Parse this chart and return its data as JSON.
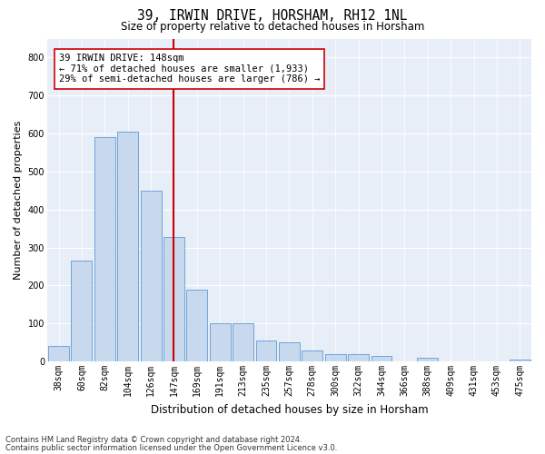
{
  "title1": "39, IRWIN DRIVE, HORSHAM, RH12 1NL",
  "title2": "Size of property relative to detached houses in Horsham",
  "xlabel": "Distribution of detached houses by size in Horsham",
  "ylabel": "Number of detached properties",
  "categories": [
    "38sqm",
    "60sqm",
    "82sqm",
    "104sqm",
    "126sqm",
    "147sqm",
    "169sqm",
    "191sqm",
    "213sqm",
    "235sqm",
    "257sqm",
    "278sqm",
    "300sqm",
    "322sqm",
    "344sqm",
    "366sqm",
    "388sqm",
    "409sqm",
    "431sqm",
    "453sqm",
    "475sqm"
  ],
  "values": [
    40,
    265,
    590,
    605,
    450,
    327,
    190,
    100,
    100,
    55,
    50,
    30,
    20,
    20,
    15,
    0,
    10,
    0,
    0,
    0,
    5
  ],
  "highlight_index": 5,
  "bar_color": "#c9d9ed",
  "bar_edge_color": "#5b9bd5",
  "highlight_line_color": "#cc0000",
  "annotation_text": "39 IRWIN DRIVE: 148sqm\n← 71% of detached houses are smaller (1,933)\n29% of semi-detached houses are larger (786) →",
  "annotation_box_color": "#ffffff",
  "annotation_box_edge": "#cc0000",
  "footer1": "Contains HM Land Registry data © Crown copyright and database right 2024.",
  "footer2": "Contains public sector information licensed under the Open Government Licence v3.0.",
  "ylim": [
    0,
    850
  ],
  "yticks": [
    0,
    100,
    200,
    300,
    400,
    500,
    600,
    700,
    800
  ],
  "bg_color": "#e8eef8",
  "grid_color": "#ffffff",
  "title1_fontsize": 10.5,
  "title2_fontsize": 8.5,
  "ylabel_fontsize": 8.0,
  "xlabel_fontsize": 8.5,
  "tick_fontsize": 7.0,
  "annot_fontsize": 7.5,
  "footer_fontsize": 6.0
}
